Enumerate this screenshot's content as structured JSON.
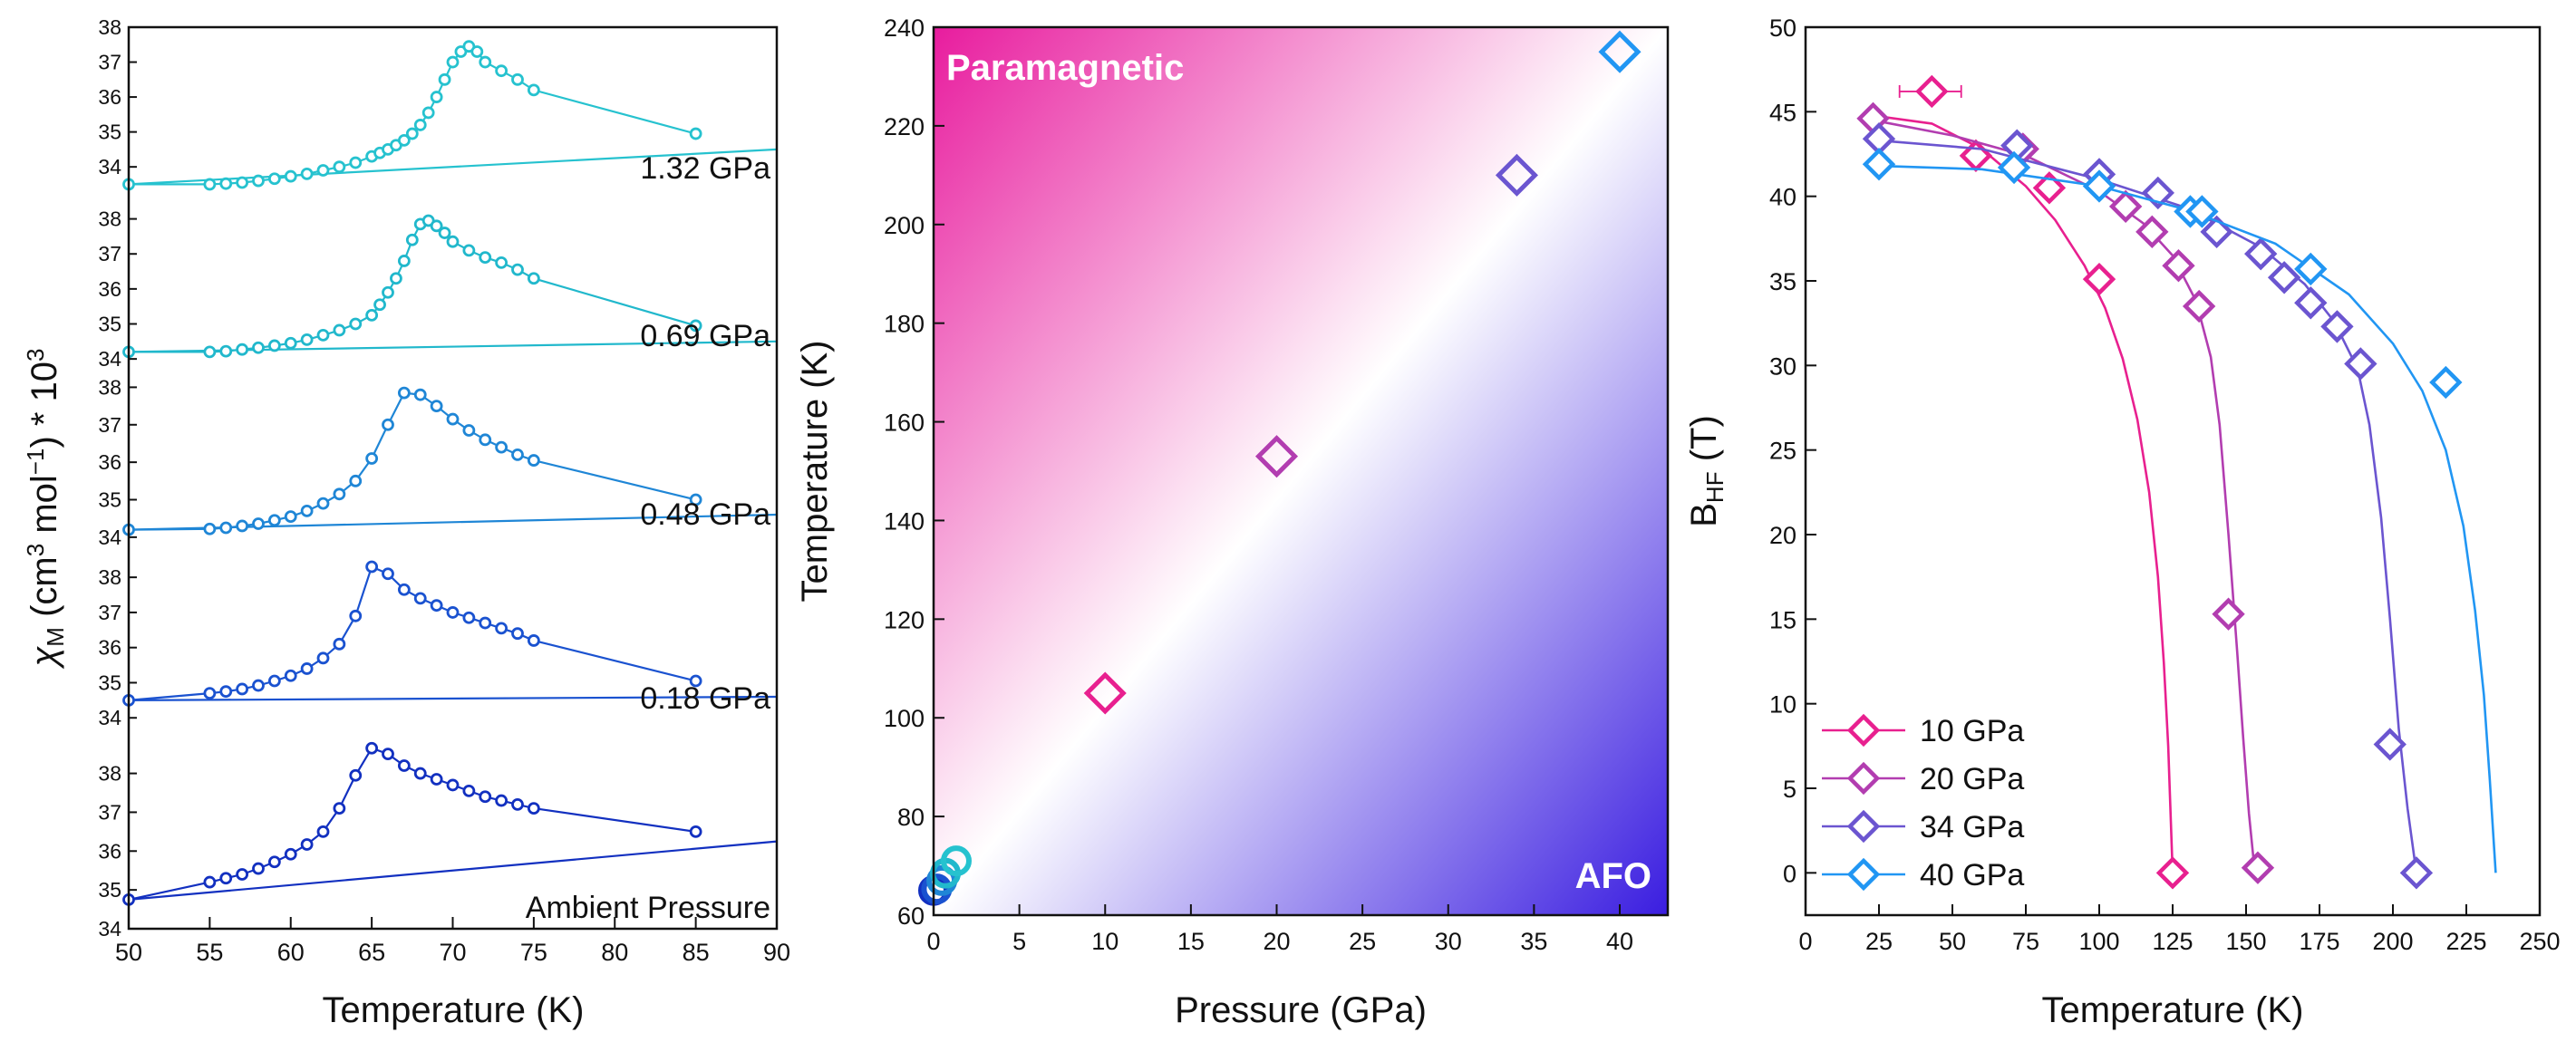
{
  "chart_data": [
    {
      "type": "line",
      "xlabel": "Temperature (K)",
      "ylabel": "χM (cm3 mol-1) * 10^3",
      "ylabel_parts": [
        "χ",
        "M",
        " (cm",
        "3",
        " mol",
        "−1",
        ") * 10",
        "3"
      ],
      "xlim": [
        50,
        90
      ],
      "x_ticks": [
        "50",
        "55",
        "60",
        "65",
        "70",
        "75",
        "80",
        "85",
        "90"
      ],
      "stacked": true,
      "series": [
        {
          "name": "1.32 GPa",
          "color": "#26c2cf",
          "ylim": [
            33.2,
            38.0
          ],
          "y_ticks": [
            "34",
            "35",
            "36",
            "37",
            "38"
          ],
          "x": [
            50,
            55,
            56,
            57,
            58,
            59,
            60,
            61,
            62,
            63,
            64,
            65,
            65.5,
            66,
            66.5,
            67,
            67.5,
            68,
            68.5,
            69,
            69.5,
            70,
            70.5,
            71,
            71.5,
            72,
            73,
            74,
            75,
            85
          ],
          "y": [
            33.5,
            33.5,
            33.52,
            33.55,
            33.6,
            33.66,
            33.73,
            33.8,
            33.9,
            34.0,
            34.12,
            34.3,
            34.4,
            34.5,
            34.62,
            34.76,
            34.95,
            35.2,
            35.55,
            36.0,
            36.5,
            37.0,
            37.3,
            37.45,
            37.3,
            37.0,
            36.75,
            36.5,
            36.2,
            34.95
          ],
          "fit_x": [
            50,
            90
          ],
          "fit_y": [
            33.5,
            34.5
          ]
        },
        {
          "name": "0.69 GPa",
          "color": "#21b8cc",
          "ylim": [
            33.9,
            38.3
          ],
          "y_ticks": [
            "34",
            "35",
            "36",
            "37",
            "38"
          ],
          "x": [
            50,
            55,
            56,
            57,
            58,
            59,
            60,
            61,
            62,
            63,
            64,
            65,
            65.5,
            66,
            66.5,
            67,
            67.5,
            68,
            68.5,
            69,
            69.5,
            70,
            71,
            72,
            73,
            74,
            75,
            85
          ],
          "y": [
            34.2,
            34.2,
            34.22,
            34.27,
            34.32,
            34.38,
            34.45,
            34.55,
            34.68,
            34.82,
            35.0,
            35.25,
            35.55,
            35.9,
            36.3,
            36.8,
            37.4,
            37.85,
            37.95,
            37.8,
            37.6,
            37.35,
            37.1,
            36.9,
            36.75,
            36.55,
            36.3,
            34.95
          ],
          "fit_x": [
            50,
            90
          ],
          "fit_y": [
            34.2,
            34.5
          ]
        },
        {
          "name": "0.48 GPa",
          "color": "#1f86d6",
          "ylim": [
            33.9,
            38.3
          ],
          "y_ticks": [
            "34",
            "35",
            "36",
            "37",
            "38"
          ],
          "x": [
            50,
            55,
            56,
            57,
            58,
            59,
            60,
            61,
            62,
            63,
            64,
            65,
            66,
            67,
            68,
            69,
            70,
            71,
            72,
            73,
            74,
            75,
            85
          ],
          "y": [
            34.2,
            34.22,
            34.25,
            34.3,
            34.36,
            34.45,
            34.55,
            34.7,
            34.9,
            35.15,
            35.5,
            36.1,
            37.0,
            37.85,
            37.8,
            37.5,
            37.15,
            36.85,
            36.6,
            36.4,
            36.2,
            36.05,
            35.0
          ],
          "fit_x": [
            50,
            90
          ],
          "fit_y": [
            34.2,
            34.6
          ]
        },
        {
          "name": "0.18 GPa",
          "color": "#1a52d0",
          "ylim": [
            33.8,
            38.7
          ],
          "y_ticks": [
            "34",
            "35",
            "36",
            "37",
            "38"
          ],
          "x": [
            50,
            55,
            56,
            57,
            58,
            59,
            60,
            61,
            62,
            63,
            64,
            65,
            66,
            67,
            68,
            69,
            70,
            71,
            72,
            73,
            74,
            75,
            85
          ],
          "y": [
            34.5,
            34.7,
            34.75,
            34.82,
            34.92,
            35.05,
            35.2,
            35.4,
            35.7,
            36.1,
            36.9,
            38.3,
            38.1,
            37.65,
            37.4,
            37.2,
            37.0,
            36.85,
            36.7,
            36.55,
            36.4,
            36.2,
            35.05
          ],
          "fit_x": [
            50,
            90
          ],
          "fit_y": [
            34.5,
            34.6
          ]
        },
        {
          "name": "Ambient Pressure",
          "color": "#1230c0",
          "ylim": [
            34.0,
            38.9
          ],
          "y_ticks": [
            "34",
            "35",
            "36",
            "37",
            "38"
          ],
          "x": [
            50,
            55,
            56,
            57,
            58,
            59,
            60,
            61,
            62,
            63,
            64,
            65,
            66,
            67,
            68,
            69,
            70,
            71,
            72,
            73,
            74,
            75,
            85
          ],
          "y": [
            34.75,
            35.2,
            35.3,
            35.4,
            35.55,
            35.72,
            35.92,
            36.17,
            36.5,
            37.1,
            37.95,
            38.65,
            38.5,
            38.2,
            38.0,
            37.85,
            37.7,
            37.55,
            37.4,
            37.3,
            37.2,
            37.1,
            36.5
          ],
          "fit_x": [
            50,
            90
          ],
          "fit_y": [
            34.75,
            36.25
          ]
        }
      ]
    },
    {
      "type": "scatter",
      "xlabel": "Pressure (GPa)",
      "ylabel": "Temperature (K)",
      "xlim": [
        0,
        42.8
      ],
      "ylim": [
        60,
        240
      ],
      "x_ticks": [
        0,
        5,
        10,
        15,
        20,
        25,
        30,
        35,
        40
      ],
      "y_ticks": [
        60,
        80,
        100,
        120,
        140,
        160,
        180,
        200,
        220,
        240
      ],
      "regions": [
        "Paramagnetic",
        "AFO"
      ],
      "region_colors": [
        "#e81c9e",
        "#3a1de0"
      ],
      "circle_points": [
        {
          "x": 0.0,
          "y": 65,
          "color": "#1230c0"
        },
        {
          "x": 0.18,
          "y": 65.3,
          "color": "#1a52d0"
        },
        {
          "x": 0.48,
          "y": 67,
          "color": "#1f86d6"
        },
        {
          "x": 0.69,
          "y": 68.5,
          "color": "#21b8cc"
        },
        {
          "x": 1.32,
          "y": 71,
          "color": "#26c2cf"
        }
      ],
      "diamond_points": [
        {
          "x": 10,
          "y": 105,
          "color": "#e8208f"
        },
        {
          "x": 20,
          "y": 153,
          "color": "#b23db0"
        },
        {
          "x": 34,
          "y": 210,
          "color": "#6b55d0"
        },
        {
          "x": 40,
          "y": 235,
          "color": "#2196f3"
        }
      ]
    },
    {
      "type": "scatter",
      "xlabel": "Temperature (K)",
      "ylabel": "BHF (T)",
      "ylabel_parts": [
        "B",
        "HF",
        " (T)"
      ],
      "xlim": [
        0,
        250
      ],
      "ylim": [
        -2.5,
        50
      ],
      "x_ticks": [
        0,
        25,
        50,
        75,
        100,
        125,
        150,
        175,
        200,
        225,
        250
      ],
      "y_ticks": [
        0,
        5,
        10,
        15,
        20,
        25,
        30,
        35,
        40,
        45,
        50
      ],
      "legend_position": "bottom-left",
      "series": [
        {
          "name": "10 GPa",
          "color": "#e8208f",
          "x": [
            43,
            58,
            83,
            100,
            125
          ],
          "y": [
            46.2,
            42.4,
            40.5,
            35.1,
            0
          ],
          "error_x": {
            "index": 0,
            "minus": 11,
            "plus": 10
          },
          "fit_x": [
            22,
            43,
            60,
            75,
            85,
            95,
            102,
            108,
            113,
            117,
            120,
            122,
            123.5,
            125
          ],
          "fit_y": [
            44.8,
            44.3,
            42.8,
            40.6,
            38.6,
            35.9,
            33.4,
            30.4,
            26.8,
            22.5,
            17.5,
            12.4,
            7.5,
            0
          ]
        },
        {
          "name": "20 GPa",
          "color": "#b23db0",
          "x": [
            23,
            74,
            109,
            118,
            127,
            134,
            144,
            154
          ],
          "y": [
            44.6,
            42.8,
            39.4,
            37.9,
            35.9,
            33.5,
            15.3,
            0.3
          ],
          "fit_x": [
            23,
            50,
            75,
            100,
            115,
            125,
            133,
            138,
            141,
            144,
            147,
            149,
            151,
            153
          ],
          "fit_y": [
            44.5,
            43.6,
            42.4,
            40.3,
            38.4,
            36.5,
            33.8,
            30.5,
            26.5,
            20,
            13,
            8,
            3.5,
            0
          ]
        },
        {
          "name": "34 GPa",
          "color": "#6b55d0",
          "x": [
            25,
            72,
            100,
            120,
            140,
            155,
            163,
            172,
            181,
            189,
            199,
            208
          ],
          "y": [
            43.4,
            43.0,
            41.3,
            40.2,
            37.9,
            36.6,
            35.2,
            33.7,
            32.3,
            30.1,
            7.6,
            0
          ],
          "fit_x": [
            25,
            60,
            100,
            130,
            155,
            170,
            180,
            188,
            192,
            196,
            199,
            202,
            205,
            208
          ],
          "fit_y": [
            43.3,
            42.8,
            41.0,
            39.3,
            37.0,
            34.8,
            32.6,
            29.8,
            26.5,
            21,
            15,
            8.5,
            3.8,
            0
          ]
        },
        {
          "name": "40 GPa",
          "color": "#2196f3",
          "x": [
            25,
            71,
            100,
            131,
            135,
            172,
            218
          ],
          "y": [
            41.9,
            41.7,
            40.6,
            39.1,
            39.1,
            35.7,
            29.0
          ],
          "fit_x": [
            25,
            60,
            100,
            130,
            160,
            185,
            200,
            210,
            218,
            224,
            228,
            231,
            233,
            235
          ],
          "fit_y": [
            41.8,
            41.6,
            40.6,
            39.2,
            37.2,
            34.2,
            31.3,
            28.5,
            25,
            20.5,
            15.5,
            10.5,
            5.5,
            0
          ]
        }
      ]
    }
  ]
}
